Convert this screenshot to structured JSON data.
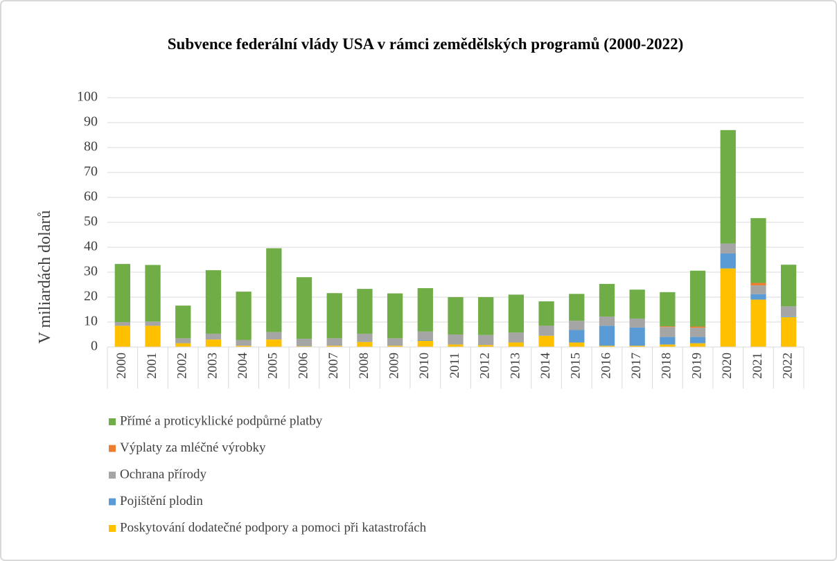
{
  "chart_data": {
    "type": "bar",
    "stacked": true,
    "title": "Subvence federální vlády USA v rámci zemědělských programů (2000-2022)",
    "ylabel": "V miliardách dolarů",
    "categories": [
      "2000",
      "2001",
      "2002",
      "2003",
      "2004",
      "2005",
      "2006",
      "2007",
      "2008",
      "2009",
      "2010",
      "2011",
      "2012",
      "2013",
      "2014",
      "2015",
      "2016",
      "2017",
      "2018",
      "2019",
      "2020",
      "2021",
      "2022"
    ],
    "series": [
      {
        "name": "Poskytování dodatečné podpory a pomoci při katastrofách",
        "color": "#ffc000",
        "values": [
          8.5,
          8.5,
          1.5,
          3,
          0.5,
          3,
          0.3,
          0.5,
          2,
          0.5,
          2.5,
          1,
          0.8,
          1.8,
          4.5,
          1.8,
          0.5,
          0.5,
          1,
          1.5,
          31.5,
          19,
          12
        ]
      },
      {
        "name": "Pojištění plodin",
        "color": "#5b9bd5",
        "values": [
          0,
          0,
          0,
          0,
          0,
          0,
          0,
          0,
          0,
          0,
          0.3,
          0,
          0,
          0,
          0,
          5,
          8,
          7.3,
          3,
          2.5,
          6,
          2.2,
          0.3
        ]
      },
      {
        "name": "Ochrana přírody",
        "color": "#a5a5a5",
        "values": [
          1.5,
          1.7,
          2,
          2.3,
          2.3,
          3,
          3,
          3,
          3.3,
          3,
          3.4,
          4,
          4,
          4,
          4,
          3.7,
          3.7,
          3.6,
          4,
          3.7,
          4,
          3.5,
          4
        ]
      },
      {
        "name": "Výplaty za mléčné výrobky",
        "color": "#ed7d31",
        "values": [
          0,
          0,
          0,
          0,
          0,
          0,
          0,
          0,
          0,
          0,
          0,
          0,
          0,
          0,
          0,
          0,
          0,
          0,
          0.3,
          0.5,
          0,
          1,
          0
        ]
      },
      {
        "name": "Přímé a proticyklické podpůrné platby",
        "color": "#70ad47",
        "values": [
          23.3,
          22.7,
          13.1,
          25.5,
          19.4,
          33.6,
          24.7,
          18.1,
          18,
          18,
          17.4,
          15,
          15.2,
          15.2,
          9.8,
          10.8,
          13.1,
          11.6,
          13.7,
          22.4,
          45.5,
          26,
          16.7
        ]
      }
    ],
    "ylim": [
      0,
      100
    ],
    "yticks": [
      0,
      10,
      20,
      30,
      40,
      50,
      60,
      70,
      80,
      90,
      100
    ],
    "grid": true,
    "legend": "bottom-left"
  }
}
